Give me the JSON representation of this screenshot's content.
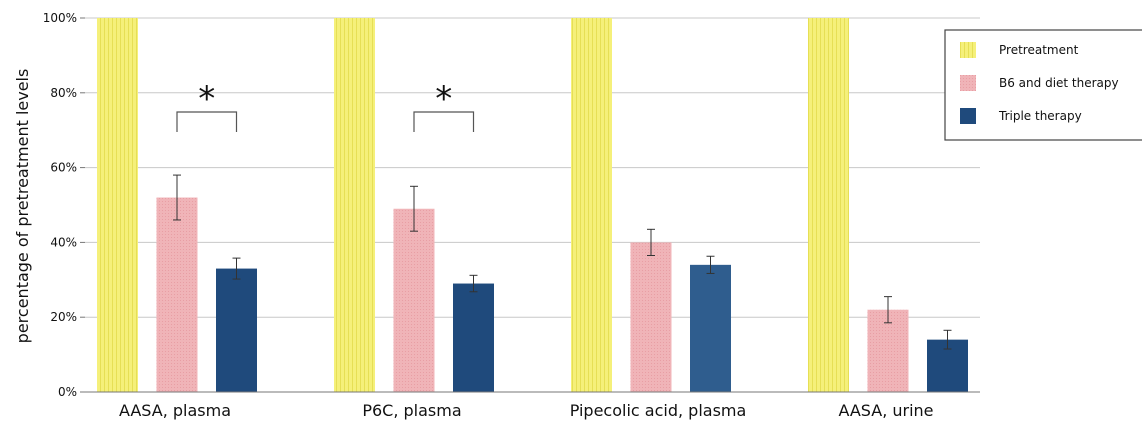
{
  "chart_data": {
    "type": "bar",
    "categories": [
      "AASA, plasma",
      "P6C, plasma",
      "Pipecolic acid, plasma",
      "AASA, urine"
    ],
    "series": [
      {
        "name": "Pretreatment",
        "color": "#f5f07a",
        "values": [
          100,
          100,
          100,
          100
        ],
        "errors": [
          0,
          0,
          0,
          0
        ]
      },
      {
        "name": "B6 and diet therapy",
        "color": "#f0b4b8",
        "values": [
          52,
          49,
          40,
          22
        ],
        "errors": [
          6,
          6,
          3.5,
          3.5
        ]
      },
      {
        "name": "Triple therapy",
        "color": "#1f4a7c",
        "values": [
          33,
          29,
          34,
          14
        ],
        "errors": [
          2.8,
          2.2,
          2.3,
          2.5
        ]
      }
    ],
    "significance": [
      {
        "category": "AASA, plasma",
        "between": [
          "B6 and diet therapy",
          "Triple therapy"
        ],
        "label": "*"
      },
      {
        "category": "P6C, plasma",
        "between": [
          "B6 and diet therapy",
          "Triple therapy"
        ],
        "label": "*"
      }
    ],
    "ylabel": "percentage of pretreatment levels",
    "yticks": [
      "0%",
      "20%",
      "40%",
      "60%",
      "80%",
      "100%"
    ],
    "ylim": [
      0,
      100
    ],
    "grid": true,
    "legend_position": "top-right"
  }
}
